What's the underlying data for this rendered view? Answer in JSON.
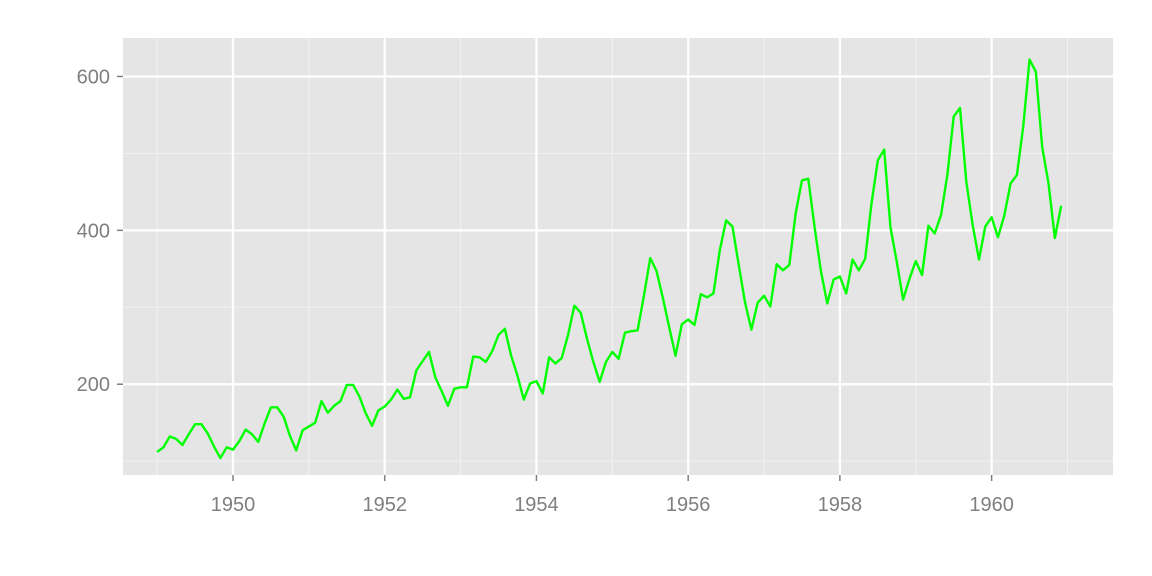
{
  "chart_data": {
    "type": "line",
    "title": "",
    "xlabel": "",
    "ylabel": "",
    "grid": true,
    "legend": "none",
    "colors": {
      "panel": "#e5e5e5",
      "grid_major": "#ffffff",
      "grid_minor": "#f2f2f2",
      "line": "#00ff00",
      "tick_text": "#7f7f7f"
    },
    "xlim": [
      1948.55,
      1961.6
    ],
    "ylim": [
      82,
      650
    ],
    "x_ticks": [
      1950,
      1952,
      1954,
      1956,
      1958,
      1960
    ],
    "x_tick_labels": [
      "1950",
      "1952",
      "1954",
      "1956",
      "1958",
      "1960"
    ],
    "y_ticks": [
      200,
      400,
      600
    ],
    "y_tick_labels": [
      "200",
      "400",
      "600"
    ],
    "x_start": 1949.0,
    "x_step": 0.0833333,
    "series": [
      {
        "name": "",
        "values": [
          112,
          118,
          132,
          129,
          121,
          135,
          148,
          148,
          136,
          119,
          104,
          118,
          115,
          126,
          141,
          135,
          125,
          149,
          170,
          170,
          158,
          133,
          114,
          140,
          145,
          150,
          178,
          163,
          172,
          178,
          199,
          199,
          184,
          162,
          146,
          166,
          171,
          180,
          193,
          181,
          183,
          218,
          230,
          242,
          209,
          191,
          172,
          194,
          196,
          196,
          236,
          235,
          229,
          243,
          264,
          272,
          237,
          211,
          180,
          201,
          204,
          188,
          235,
          227,
          234,
          264,
          302,
          293,
          259,
          229,
          203,
          229,
          242,
          233,
          267,
          269,
          270,
          315,
          364,
          347,
          312,
          274,
          237,
          278,
          284,
          277,
          317,
          313,
          318,
          374,
          413,
          405,
          355,
          306,
          271,
          306,
          315,
          301,
          356,
          348,
          355,
          422,
          465,
          467,
          404,
          347,
          305,
          336,
          340,
          318,
          362,
          348,
          363,
          435,
          491,
          505,
          404,
          359,
          310,
          337,
          360,
          342,
          406,
          396,
          420,
          472,
          548,
          559,
          463,
          407,
          362,
          405,
          417,
          391,
          419,
          461,
          472,
          535,
          622,
          606,
          508,
          461,
          390,
          432
        ]
      }
    ]
  }
}
